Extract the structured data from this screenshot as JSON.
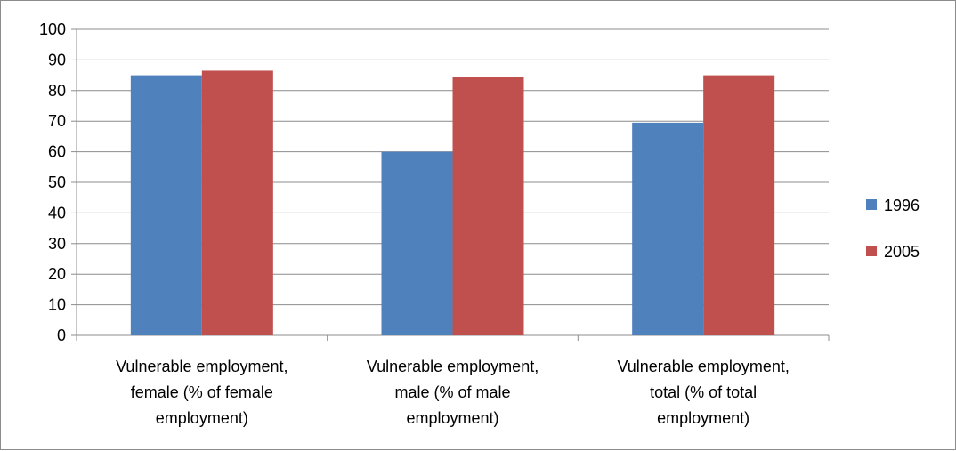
{
  "chart_data": {
    "type": "bar",
    "title": "",
    "xlabel": "",
    "ylabel": "",
    "ylim": [
      0,
      100
    ],
    "yticks": [
      0,
      10,
      20,
      30,
      40,
      50,
      60,
      70,
      80,
      90,
      100
    ],
    "grid": true,
    "legend_position": "right",
    "categories": [
      [
        "Vulnerable employment,",
        "female (% of female",
        "employment)"
      ],
      [
        "Vulnerable employment,",
        "male (% of male",
        "employment)"
      ],
      [
        "Vulnerable employment,",
        "total (% of total",
        "employment)"
      ]
    ],
    "series": [
      {
        "name": "1996",
        "color": "#4f81bd",
        "values": [
          85,
          60,
          69.5
        ]
      },
      {
        "name": "2005",
        "color": "#c0504d",
        "values": [
          86.5,
          84.5,
          85
        ]
      }
    ]
  }
}
